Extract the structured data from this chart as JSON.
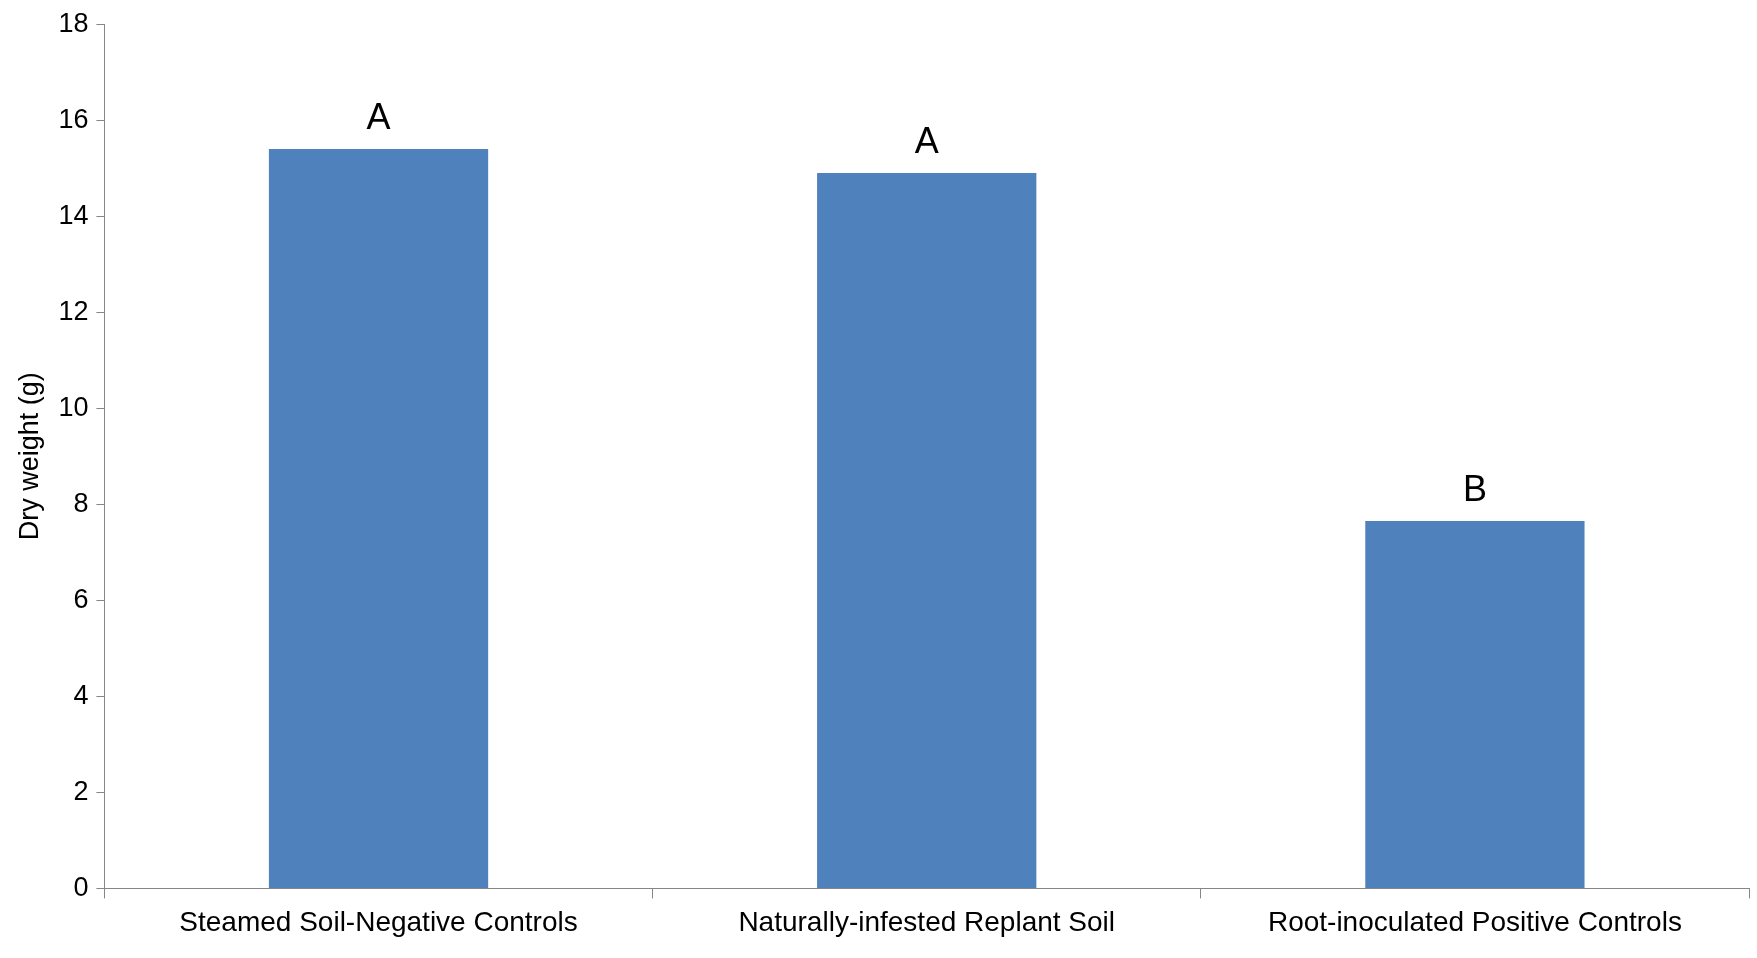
{
  "chart_data": {
    "type": "bar",
    "ylabel": "Dry weight (g)",
    "categories": [
      "Steamed Soil-Negative Controls",
      "Naturally-infested Replant Soil",
      "Root-inoculated Positive Controls"
    ],
    "values": [
      15.4,
      14.9,
      7.65
    ],
    "color": "#4f81bd",
    "ylim": [
      0,
      18
    ],
    "yticks": [
      0,
      2,
      4,
      6,
      8,
      10,
      12,
      14,
      16,
      18
    ],
    "grid": false,
    "annotations": [
      {
        "text": "A",
        "x": "Steamed Soil-Negative Controls",
        "y": 15.4
      },
      {
        "text": "A",
        "x": "Naturally-infested Replant Soil",
        "y": 14.9
      },
      {
        "text": "B",
        "x": "Root-inoculated Positive Controls",
        "y": 7.65
      }
    ]
  }
}
